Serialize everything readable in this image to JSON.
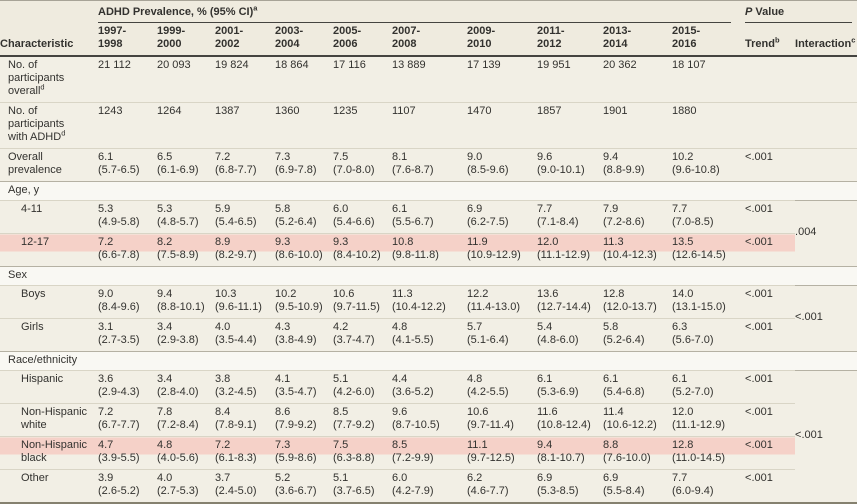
{
  "colors": {
    "header_bg": "#efebdf",
    "row_bg": "#f2efe5",
    "section_bg": "#f9f8f3",
    "highlight": "#f5d1c8"
  },
  "header": {
    "span_header": {
      "text": "ADHD Prevalence, % (95% CI)",
      "sup": "a"
    },
    "p_value": {
      "italic": "P",
      "rest": " Value"
    },
    "characteristic": "Characteristic",
    "year_columns": [
      [
        "1997-",
        "1998"
      ],
      [
        "1999-",
        "2000"
      ],
      [
        "2001-",
        "2002"
      ],
      [
        "2003-",
        "2004"
      ],
      [
        "2005-",
        "2006"
      ],
      [
        "2007-",
        "2008"
      ],
      [
        "2009-",
        "2010"
      ],
      [
        "2011-",
        "2012"
      ],
      [
        "2013-",
        "2014"
      ],
      [
        "2015-",
        "2016"
      ]
    ],
    "trend": {
      "label": "Trend",
      "sup": "b"
    },
    "interaction": {
      "label": "Interaction",
      "sup": "c"
    }
  },
  "rows": [
    {
      "kind": "count",
      "label_lines": [
        "No. of",
        "participants",
        "overall"
      ],
      "label_sup": "d",
      "values": [
        "21 112",
        "20 093",
        "19 824",
        "18 864",
        "17 116",
        "13 889",
        "17 139",
        "19 951",
        "20 362",
        "18 107"
      ],
      "trend": ""
    },
    {
      "kind": "count",
      "label_lines": [
        "No. of",
        "participants",
        "with ADHD"
      ],
      "label_sup": "d",
      "values": [
        "1243",
        "1264",
        "1387",
        "1360",
        "1235",
        "1107",
        "1470",
        "1857",
        "1901",
        "1880"
      ],
      "trend": ""
    },
    {
      "kind": "prev",
      "label_lines": [
        "Overall",
        "prevalence"
      ],
      "values": [
        {
          "v": "6.1",
          "ci": "(5.7-6.5)"
        },
        {
          "v": "6.5",
          "ci": "(6.1-6.9)"
        },
        {
          "v": "7.2",
          "ci": "(6.8-7.7)"
        },
        {
          "v": "7.3",
          "ci": "(6.9-7.8)"
        },
        {
          "v": "7.5",
          "ci": "(7.0-8.0)"
        },
        {
          "v": "8.1",
          "ci": "(7.6-8.7)"
        },
        {
          "v": "9.0",
          "ci": "(8.5-9.6)"
        },
        {
          "v": "9.6",
          "ci": "(9.0-10.1)"
        },
        {
          "v": "9.4",
          "ci": "(8.8-9.9)"
        },
        {
          "v": "10.2",
          "ci": "(9.6-10.8)"
        }
      ],
      "trend": "<.001"
    },
    {
      "kind": "section",
      "label": "Age, y",
      "interaction": ".004",
      "span": 2
    },
    {
      "kind": "prev",
      "indent": true,
      "label_lines": [
        "4-11"
      ],
      "values": [
        {
          "v": "5.3",
          "ci": "(4.9-5.8)"
        },
        {
          "v": "5.3",
          "ci": "(4.8-5.7)"
        },
        {
          "v": "5.9",
          "ci": "(5.4-6.5)"
        },
        {
          "v": "5.8",
          "ci": "(5.2-6.4)"
        },
        {
          "v": "6.0",
          "ci": "(5.4-6.6)"
        },
        {
          "v": "6.1",
          "ci": "(5.5-6.7)"
        },
        {
          "v": "6.9",
          "ci": "(6.2-7.5)"
        },
        {
          "v": "7.7",
          "ci": "(7.1-8.4)"
        },
        {
          "v": "7.9",
          "ci": "(7.2-8.6)"
        },
        {
          "v": "7.7",
          "ci": "(7.0-8.5)"
        }
      ],
      "trend": "<.001"
    },
    {
      "kind": "prev",
      "indent": true,
      "highlight": true,
      "label_lines": [
        "12-17"
      ],
      "values": [
        {
          "v": "7.2",
          "ci": "(6.6-7.8)"
        },
        {
          "v": "8.2",
          "ci": "(7.5-8.9)"
        },
        {
          "v": "8.9",
          "ci": "(8.2-9.7)"
        },
        {
          "v": "9.3",
          "ci": "(8.6-10.0)"
        },
        {
          "v": "9.3",
          "ci": "(8.4-10.2)"
        },
        {
          "v": "10.8",
          "ci": "(9.8-11.8)"
        },
        {
          "v": "11.9",
          "ci": "(10.9-12.9)"
        },
        {
          "v": "12.0",
          "ci": "(11.1-12.9)"
        },
        {
          "v": "11.3",
          "ci": "(10.4-12.3)"
        },
        {
          "v": "13.5",
          "ci": "(12.6-14.5)"
        }
      ],
      "trend": "<.001"
    },
    {
      "kind": "section",
      "label": "Sex",
      "interaction": "<.001",
      "span": 2
    },
    {
      "kind": "prev",
      "indent": true,
      "label_lines": [
        "Boys"
      ],
      "values": [
        {
          "v": "9.0",
          "ci": "(8.4-9.6)"
        },
        {
          "v": "9.4",
          "ci": "(8.8-10.1)"
        },
        {
          "v": "10.3",
          "ci": "(9.6-11.1)"
        },
        {
          "v": "10.2",
          "ci": "(9.5-10.9)"
        },
        {
          "v": "10.6",
          "ci": "(9.7-11.5)"
        },
        {
          "v": "11.3",
          "ci": "(10.4-12.2)"
        },
        {
          "v": "12.2",
          "ci": "(11.4-13.0)"
        },
        {
          "v": "13.6",
          "ci": "(12.7-14.4)"
        },
        {
          "v": "12.8",
          "ci": "(12.0-13.7)"
        },
        {
          "v": "14.0",
          "ci": "(13.1-15.0)"
        }
      ],
      "trend": "<.001"
    },
    {
      "kind": "prev",
      "indent": true,
      "label_lines": [
        "Girls"
      ],
      "values": [
        {
          "v": "3.1",
          "ci": "(2.7-3.5)"
        },
        {
          "v": "3.4",
          "ci": "(2.9-3.8)"
        },
        {
          "v": "4.0",
          "ci": "(3.5-4.4)"
        },
        {
          "v": "4.3",
          "ci": "(3.8-4.9)"
        },
        {
          "v": "4.2",
          "ci": "(3.7-4.7)"
        },
        {
          "v": "4.8",
          "ci": "(4.1-5.5)"
        },
        {
          "v": "5.7",
          "ci": "(5.1-6.4)"
        },
        {
          "v": "5.4",
          "ci": "(4.8-6.0)"
        },
        {
          "v": "5.8",
          "ci": "(5.2-6.4)"
        },
        {
          "v": "6.3",
          "ci": "(5.6-7.0)"
        }
      ],
      "trend": "<.001"
    },
    {
      "kind": "section",
      "label": "Race/ethnicity",
      "interaction": "<.001",
      "span": 4
    },
    {
      "kind": "prev",
      "indent": true,
      "label_lines": [
        "Hispanic"
      ],
      "values": [
        {
          "v": "3.6",
          "ci": "(2.9-4.3)"
        },
        {
          "v": "3.4",
          "ci": "(2.8-4.0)"
        },
        {
          "v": "3.8",
          "ci": "(3.2-4.5)"
        },
        {
          "v": "4.1",
          "ci": "(3.5-4.7)"
        },
        {
          "v": "5.1",
          "ci": "(4.2-6.0)"
        },
        {
          "v": "4.4",
          "ci": "(3.6-5.2)"
        },
        {
          "v": "4.8",
          "ci": "(4.2-5.5)"
        },
        {
          "v": "6.1",
          "ci": "(5.3-6.9)"
        },
        {
          "v": "6.1",
          "ci": "(5.4-6.8)"
        },
        {
          "v": "6.1",
          "ci": "(5.2-7.0)"
        }
      ],
      "trend": "<.001"
    },
    {
      "kind": "prev",
      "indent": true,
      "label_lines": [
        "Non-Hispanic",
        "white"
      ],
      "values": [
        {
          "v": "7.2",
          "ci": "(6.7-7.7)"
        },
        {
          "v": "7.8",
          "ci": "(7.2-8.4)"
        },
        {
          "v": "8.4",
          "ci": "(7.8-9.1)"
        },
        {
          "v": "8.6",
          "ci": "(7.9-9.2)"
        },
        {
          "v": "8.5",
          "ci": "(7.7-9.2)"
        },
        {
          "v": "9.6",
          "ci": "(8.7-10.5)"
        },
        {
          "v": "10.6",
          "ci": "(9.7-11.4)"
        },
        {
          "v": "11.6",
          "ci": "(10.8-12.4)"
        },
        {
          "v": "11.4",
          "ci": "(10.6-12.2)"
        },
        {
          "v": "12.0",
          "ci": "(11.1-12.9)"
        }
      ],
      "trend": "<.001"
    },
    {
      "kind": "prev",
      "indent": true,
      "highlight": true,
      "label_lines": [
        "Non-Hispanic",
        "black"
      ],
      "values": [
        {
          "v": "4.7",
          "ci": "(3.9-5.5)"
        },
        {
          "v": "4.8",
          "ci": "(4.0-5.6)"
        },
        {
          "v": "7.2",
          "ci": "(6.1-8.3)"
        },
        {
          "v": "7.3",
          "ci": "(5.9-8.6)"
        },
        {
          "v": "7.5",
          "ci": "(6.3-8.8)"
        },
        {
          "v": "8.5",
          "ci": "(7.2-9.9)"
        },
        {
          "v": "11.1",
          "ci": "(9.7-12.5)"
        },
        {
          "v": "9.4",
          "ci": "(8.1-10.7)"
        },
        {
          "v": "8.8",
          "ci": "(7.6-10.0)"
        },
        {
          "v": "12.8",
          "ci": "(11.0-14.5)"
        }
      ],
      "trend": "<.001"
    },
    {
      "kind": "prev",
      "indent": true,
      "label_lines": [
        "Other"
      ],
      "values": [
        {
          "v": "3.9",
          "ci": "(2.6-5.2)"
        },
        {
          "v": "4.0",
          "ci": "(2.7-5.3)"
        },
        {
          "v": "3.7",
          "ci": "(2.4-5.0)"
        },
        {
          "v": "5.2",
          "ci": "(3.6-6.7)"
        },
        {
          "v": "5.1",
          "ci": "(3.7-6.5)"
        },
        {
          "v": "6.0",
          "ci": "(4.2-7.9)"
        },
        {
          "v": "6.2",
          "ci": "(4.6-7.7)"
        },
        {
          "v": "6.9",
          "ci": "(5.3-8.5)"
        },
        {
          "v": "6.9",
          "ci": "(5.5-8.4)"
        },
        {
          "v": "7.7",
          "ci": "(6.0-9.4)"
        }
      ],
      "trend": "<.001"
    }
  ]
}
